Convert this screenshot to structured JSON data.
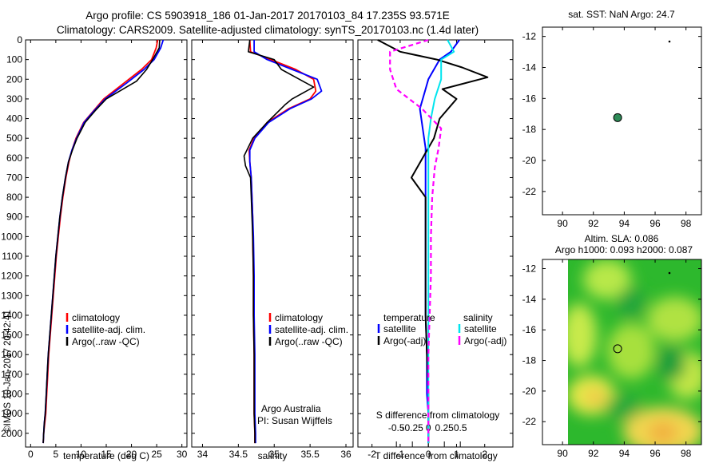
{
  "header": {
    "line1": "Argo profile: CS 5903918_186 01-Jan-2017 20170103_84 17.235S 93.571E",
    "line2": "Climatology: CARS2009. Satellite-adjusted climatology: synTS_20170103.nc (1.4d later)"
  },
  "colors": {
    "climatology": "#ff0000",
    "satellite": "#0000ff",
    "argo": "#000000",
    "salinity_satellite": "#00e5ee",
    "salinity_argo": "#ff00ff",
    "map_point": "#2e8b57"
  },
  "depth_axis": {
    "ticks": [
      "0",
      "100",
      "200",
      "300",
      "400",
      "500",
      "600",
      "700",
      "800",
      "900",
      "1000",
      "1100",
      "1200",
      "1300",
      "1400",
      "1500",
      "1600",
      "1700",
      "1800",
      "1900",
      "2000"
    ],
    "ylim": [
      0,
      2070
    ]
  },
  "temperature_panel": {
    "xlabel": "temperature (deg C)",
    "xticks": [
      "0",
      "5",
      "10",
      "15",
      "20",
      "25",
      "30"
    ],
    "legend": [
      "climatology",
      "satellite-adj. clim.",
      "Argo(..raw -QC)"
    ]
  },
  "salinity_panel": {
    "xlabel": "salinity",
    "xticks": [
      "34",
      "34.5",
      "35",
      "35.5",
      "36"
    ],
    "legend": [
      "climatology",
      "satellite-adj. clim.",
      "Argo(..raw -QC)"
    ],
    "credit1": "Argo Australia",
    "credit2": "PI: Susan Wijffels"
  },
  "difference_panel": {
    "top_xlabel": "S difference from climatology",
    "top_xticks": [
      "-0.5",
      "-0.25",
      "0",
      "0.25",
      "0.5"
    ],
    "bottom_xlabel": "T difference from climatology",
    "bottom_xticks": [
      "-2",
      "-1",
      "0",
      "1",
      "2"
    ],
    "legend_temp_title": "temperature",
    "legend_sal_title": "salinity",
    "legend_satellite": "satellite",
    "legend_argo": "Argo(-adj)"
  },
  "sst_map": {
    "title": "sat. SST: NaN Argo: 24.7",
    "yticks": [
      "-12",
      "-14",
      "-16",
      "-18",
      "-20",
      "-22"
    ],
    "xticks": [
      "90",
      "92",
      "94",
      "96",
      "98"
    ]
  },
  "sla_map": {
    "title1": "Altim. SLA: 0.086",
    "title2": "Argo h1000: 0.093 h2000: 0.087",
    "yticks": [
      "-12",
      "-14",
      "-16",
      "-18",
      "-20",
      "-22"
    ],
    "xticks": [
      "90",
      "92",
      "94",
      "96",
      "98"
    ]
  },
  "watermark": "©IMOS 10-Jan-2017 20:42:41",
  "chart_data": [
    {
      "type": "line",
      "panel": "temperature",
      "xlabel": "temperature (deg C)",
      "ylabel": "",
      "xlim": [
        -1,
        31
      ],
      "ylim": [
        2070,
        0
      ],
      "series": [
        {
          "name": "climatology",
          "x": [
            25.2,
            24.9,
            24.0,
            22.0,
            18.5,
            14.5,
            12.5,
            10.5,
            9.0,
            8.2,
            7.6,
            7.0,
            6.4,
            5.9,
            5.5,
            5.1,
            4.8,
            4.5,
            4.2,
            3.9,
            3.6,
            3.4,
            3.2,
            3.0,
            2.8,
            2.6,
            2.5
          ],
          "y": [
            0,
            40,
            100,
            150,
            220,
            300,
            360,
            420,
            500,
            560,
            620,
            700,
            800,
            900,
            1000,
            1100,
            1200,
            1300,
            1400,
            1500,
            1600,
            1700,
            1800,
            1900,
            1950,
            2000,
            2050
          ]
        },
        {
          "name": "satellite-adj. clim.",
          "x": [
            26.3,
            25.8,
            24.5,
            22.5,
            19.0,
            14.8,
            12.6,
            10.6,
            9.1,
            8.2,
            7.5,
            6.9,
            6.3,
            5.8,
            5.4,
            5.0,
            4.7,
            4.4,
            4.1,
            3.8,
            3.5,
            3.3,
            3.1,
            2.9,
            2.7,
            2.6,
            2.5
          ],
          "y": [
            0,
            40,
            100,
            150,
            220,
            300,
            360,
            420,
            500,
            560,
            620,
            700,
            800,
            900,
            1000,
            1100,
            1200,
            1300,
            1400,
            1500,
            1600,
            1700,
            1800,
            1900,
            1950,
            2000,
            2050
          ]
        },
        {
          "name": "Argo(..raw -QC)",
          "x": [
            25.6,
            25.5,
            24.2,
            23.0,
            21.0,
            15.0,
            12.8,
            10.8,
            9.2,
            8.3,
            7.5,
            6.9,
            6.3,
            5.8,
            5.4,
            5.0,
            4.7,
            4.4,
            4.1,
            3.8,
            3.5,
            3.3,
            3.1,
            2.9,
            2.7,
            2.6,
            2.5
          ],
          "y": [
            0,
            40,
            100,
            150,
            210,
            300,
            360,
            420,
            500,
            560,
            620,
            700,
            800,
            900,
            1000,
            1100,
            1200,
            1300,
            1400,
            1500,
            1600,
            1700,
            1800,
            1900,
            1950,
            2000,
            2050
          ]
        }
      ]
    },
    {
      "type": "line",
      "panel": "salinity",
      "xlabel": "salinity",
      "ylabel": "",
      "xlim": [
        33.85,
        36.1
      ],
      "ylim": [
        2070,
        0
      ],
      "series": [
        {
          "name": "climatology",
          "x": [
            34.66,
            34.67,
            34.95,
            35.3,
            35.55,
            35.58,
            35.5,
            35.2,
            34.9,
            34.72,
            34.65,
            34.66,
            34.68,
            34.69,
            34.7,
            34.7,
            34.71,
            34.71,
            34.72,
            34.72,
            34.72,
            34.73,
            34.73
          ],
          "y": [
            0,
            60,
            100,
            150,
            200,
            260,
            300,
            350,
            420,
            500,
            560,
            620,
            700,
            800,
            900,
            1000,
            1200,
            1400,
            1600,
            1800,
            1900,
            2000,
            2050
          ]
        },
        {
          "name": "satellite-adj. clim.",
          "x": [
            34.72,
            34.72,
            34.9,
            35.25,
            35.6,
            35.66,
            35.52,
            35.22,
            34.92,
            34.73,
            34.66,
            34.66,
            34.68,
            34.69,
            34.7,
            34.71,
            34.72,
            34.72,
            34.73,
            34.73,
            34.73,
            34.74,
            34.74
          ],
          "y": [
            0,
            60,
            100,
            150,
            200,
            260,
            300,
            350,
            420,
            500,
            560,
            620,
            700,
            800,
            900,
            1000,
            1200,
            1400,
            1600,
            1800,
            1900,
            2000,
            2050
          ]
        },
        {
          "name": "Argo(..raw -QC)",
          "x": [
            34.66,
            34.64,
            35.0,
            35.1,
            35.35,
            35.55,
            35.25,
            35.15,
            34.9,
            34.7,
            34.58,
            34.6,
            34.67,
            34.68,
            34.69,
            34.7,
            34.71,
            34.71,
            34.72,
            34.72,
            34.72,
            34.73,
            34.73
          ],
          "y": [
            0,
            60,
            100,
            150,
            200,
            240,
            300,
            330,
            420,
            500,
            590,
            640,
            700,
            800,
            900,
            1000,
            1200,
            1400,
            1600,
            1800,
            1900,
            2000,
            2050
          ]
        }
      ]
    },
    {
      "type": "line",
      "panel": "differences",
      "xlabel": "T difference from climatology",
      "x2label": "S difference from climatology",
      "xlim": [
        -2.5,
        3.0
      ],
      "ylim": [
        2070,
        0
      ],
      "series": [
        {
          "name": "temperature satellite",
          "x": [
            1.1,
            0.8,
            0.4,
            0.2,
            0.0,
            -0.1,
            -0.3,
            -0.2,
            -0.1,
            -0.1,
            -0.1,
            -0.1,
            -0.1,
            -0.1,
            -0.05,
            -0.05,
            0.0,
            0.0,
            0.0
          ],
          "y": [
            0,
            60,
            100,
            150,
            200,
            250,
            350,
            450,
            550,
            650,
            800,
            1000,
            1200,
            1400,
            1600,
            1800,
            1900,
            2000,
            2050
          ]
        },
        {
          "name": "temperature Argo(-adj)",
          "x": [
            -1.8,
            -1.0,
            0.3,
            1.2,
            2.1,
            0.5,
            1.0,
            0.4,
            0.2,
            -0.2,
            -0.6,
            -0.1,
            -0.1,
            -0.1,
            -0.1,
            -0.05,
            0.0,
            0.0,
            0.0
          ],
          "y": [
            0,
            60,
            100,
            140,
            190,
            250,
            300,
            400,
            500,
            600,
            700,
            800,
            1000,
            1200,
            1400,
            1600,
            1800,
            2000,
            2050
          ]
        },
        {
          "name": "salinity satellite",
          "x": [
            0.15,
            0.2,
            0.1,
            0.1,
            0.05,
            0.02,
            0.0,
            0.0,
            0.0,
            0.0,
            0.0,
            0.0,
            0.0,
            0.0,
            0.0
          ],
          "y": [
            0,
            60,
            100,
            200,
            300,
            400,
            500,
            600,
            800,
            1000,
            1200,
            1400,
            1600,
            1800,
            2050
          ]
        },
        {
          "name": "salinity Argo(-adj)",
          "x": [
            0.0,
            -0.3,
            -0.3,
            -0.25,
            -0.05,
            0.1,
            0.08,
            0.05,
            0.03,
            0.02,
            0.02,
            0.01,
            0.0,
            0.0
          ],
          "y": [
            0,
            60,
            150,
            250,
            350,
            450,
            550,
            650,
            800,
            1000,
            1200,
            1400,
            1600,
            2050
          ]
        }
      ]
    },
    {
      "type": "scatter",
      "panel": "sat. SST map",
      "xlim": [
        88.7,
        99.0
      ],
      "ylim": [
        -23.5,
        -11.4
      ],
      "points": [
        {
          "lon": 93.571,
          "lat": -17.235
        }
      ]
    },
    {
      "type": "heatmap",
      "panel": "Altim. SLA map",
      "xlim": [
        88.7,
        99.0
      ],
      "ylim": [
        -23.5,
        -11.4
      ],
      "points": [
        {
          "lon": 93.571,
          "lat": -17.235
        }
      ]
    }
  ]
}
